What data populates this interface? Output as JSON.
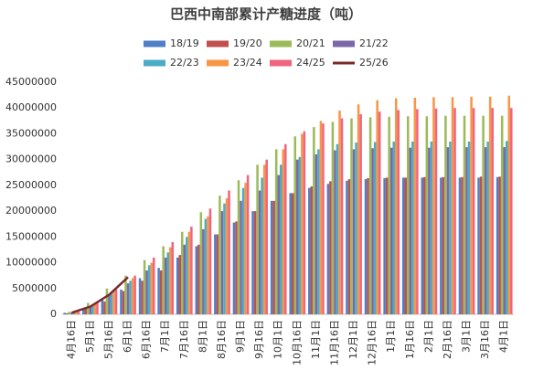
{
  "chart_data": {
    "type": "bar",
    "title": "巴西中南部累计产糖进度（吨）",
    "categories": [
      "4月16日",
      "5月1日",
      "5月16日",
      "6月1日",
      "6月16日",
      "7月1日",
      "7月16日",
      "8月1日",
      "8月16日",
      "9月1日",
      "9月16日",
      "10月1日",
      "10月16日",
      "11月1日",
      "11月16日",
      "12月1日",
      "12月16日",
      "1月1日",
      "1月16日",
      "2月1日",
      "2月16日",
      "3月1日",
      "3月16日",
      "4月1日"
    ],
    "series": [
      {
        "name": "18/19",
        "color": "#4f7fc7",
        "values": [
          300000,
          1200000,
          2800000,
          4800000,
          7000000,
          9000000,
          11000000,
          13200000,
          15500000,
          17800000,
          20000000,
          22000000,
          23500000,
          24500000,
          25300000,
          25900000,
          26200000,
          26400000,
          26500000,
          26500000,
          26500000,
          26500000,
          26500000,
          26600000
        ]
      },
      {
        "name": "19/20",
        "color": "#c0504d",
        "values": [
          200000,
          1000000,
          2500000,
          4500000,
          6500000,
          8500000,
          11500000,
          13500000,
          15500000,
          18000000,
          20000000,
          22000000,
          23500000,
          24800000,
          25800000,
          26200000,
          26400000,
          26500000,
          26500000,
          26600000,
          26600000,
          26600000,
          26700000,
          26700000
        ]
      },
      {
        "name": "20/21",
        "color": "#9bbb59",
        "values": [
          500000,
          2200000,
          5000000,
          7500000,
          10500000,
          13200000,
          16000000,
          19800000,
          23000000,
          26000000,
          29000000,
          32000000,
          34500000,
          36300000,
          37300000,
          38000000,
          38200000,
          38300000,
          38400000,
          38400000,
          38500000,
          38500000,
          38500000,
          38500000
        ]
      },
      {
        "name": "21/22",
        "color": "#7b68a8",
        "values": [
          300000,
          1500000,
          3800000,
          6000000,
          8500000,
          11000000,
          13500000,
          16500000,
          20000000,
          22000000,
          24000000,
          27000000,
          30000000,
          31000000,
          31800000,
          32000000,
          32200000,
          32300000,
          32300000,
          32300000,
          32400000,
          32400000,
          32400000,
          32400000
        ]
      },
      {
        "name": "22/23",
        "color": "#4bacc6",
        "values": [
          400000,
          1800000,
          4000000,
          6500000,
          9500000,
          12000000,
          15000000,
          18500000,
          21500000,
          24500000,
          26500000,
          29000000,
          30500000,
          32000000,
          33000000,
          33300000,
          33400000,
          33500000,
          33500000,
          33500000,
          33500000,
          33500000,
          33500000,
          33600000
        ]
      },
      {
        "name": "23/24",
        "color": "#f79646",
        "values": [
          400000,
          2000000,
          4500000,
          7000000,
          10000000,
          13000000,
          16000000,
          19000000,
          22500000,
          25500000,
          29000000,
          32000000,
          35000000,
          37500000,
          39500000,
          40700000,
          41500000,
          41900000,
          42000000,
          42100000,
          42100000,
          42200000,
          42200000,
          42400000
        ]
      },
      {
        "name": "24/25",
        "color": "#f0657e",
        "values": [
          500000,
          2200000,
          4800000,
          7500000,
          11000000,
          14000000,
          17000000,
          20500000,
          24000000,
          27000000,
          30000000,
          33000000,
          35500000,
          37000000,
          38000000,
          38800000,
          39300000,
          39600000,
          39800000,
          39900000,
          40000000,
          40000000,
          40000000,
          40000000
        ]
      },
      {
        "name": "25/26",
        "color": "#7b2a2a",
        "type": "line",
        "values": [
          300000,
          1500000,
          3800000,
          7200000,
          null,
          null,
          null,
          null,
          null,
          null,
          null,
          null,
          null,
          null,
          null,
          null,
          null,
          null,
          null,
          null,
          null,
          null,
          null,
          null
        ]
      }
    ],
    "ylim": [
      0,
      45000000
    ],
    "yticks": [
      0,
      5000000,
      10000000,
      15000000,
      20000000,
      25000000,
      30000000,
      35000000,
      40000000,
      45000000
    ],
    "grid": false,
    "legend": "top"
  }
}
